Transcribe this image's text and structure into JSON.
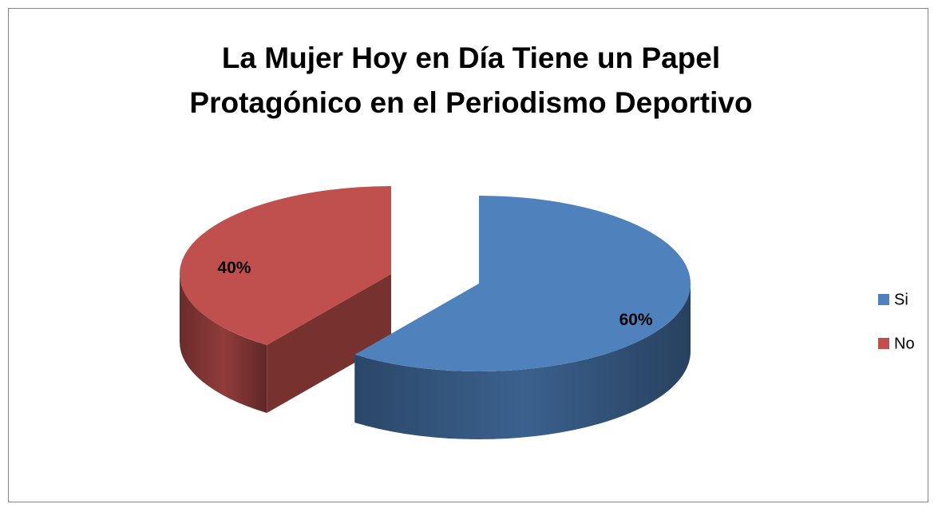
{
  "chart_data": {
    "type": "pie3d",
    "title": "La Mujer Hoy en Día Tiene un Papel\nProtagónico en el Periodismo Deportivo",
    "categories": [
      "Si",
      "No"
    ],
    "values": [
      60,
      40
    ],
    "value_labels": [
      "60%",
      "40%"
    ],
    "colors": [
      "#4f81bd",
      "#c0504d"
    ],
    "legend": "right"
  }
}
